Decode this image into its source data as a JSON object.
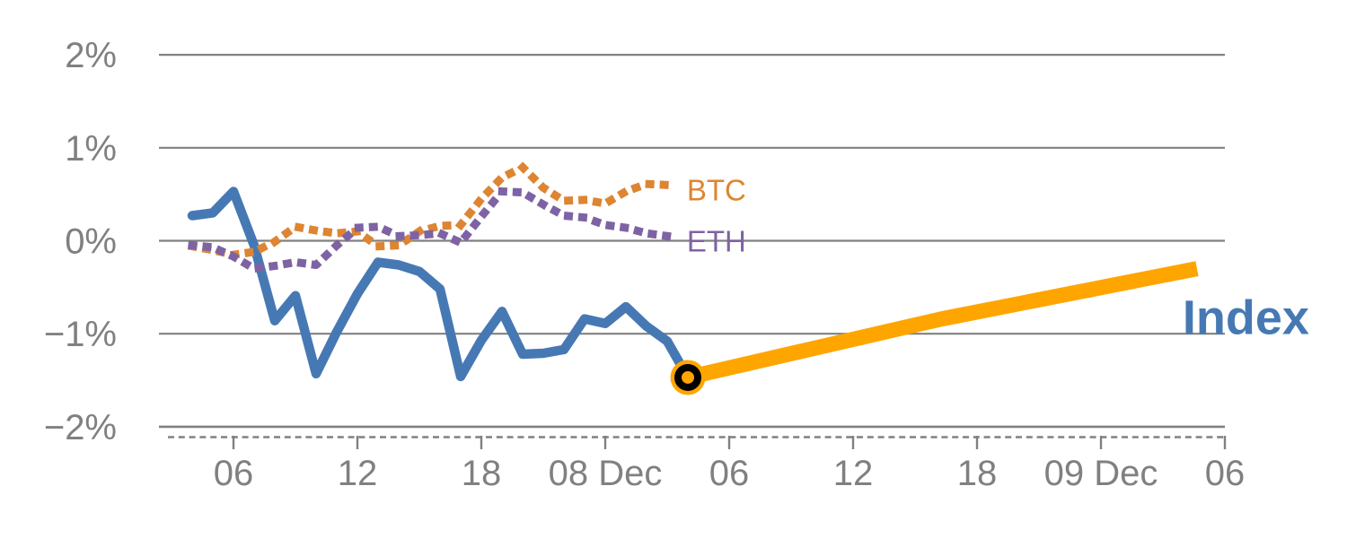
{
  "chart_data": {
    "type": "line",
    "title": "",
    "xlabel": "",
    "ylabel": "",
    "grid": true,
    "legend_position": "end-of-line-labels",
    "x_axis": {
      "unit": "hours (hourly returns, Dec 7 - Dec 10)",
      "range_hours": [
        2.4,
        54.1
      ],
      "ticks": [
        {
          "h": 6,
          "label": "06"
        },
        {
          "h": 12,
          "label": "12"
        },
        {
          "h": 18,
          "label": "18"
        },
        {
          "h": 24,
          "label": "08 Dec"
        },
        {
          "h": 30,
          "label": "06"
        },
        {
          "h": 36,
          "label": "12"
        },
        {
          "h": 42,
          "label": "18"
        },
        {
          "h": 48,
          "label": "09 Dec"
        },
        {
          "h": 54,
          "label": "06"
        }
      ]
    },
    "y_axis": {
      "unit": "percent return",
      "range": [
        -2.4,
        2.0
      ],
      "ticks": [
        {
          "v": 2,
          "label": "2%"
        },
        {
          "v": 1,
          "label": "1%"
        },
        {
          "v": 0,
          "label": "0%"
        },
        {
          "v": -1,
          "label": "−1%"
        },
        {
          "v": -2,
          "label": "−2%"
        }
      ]
    },
    "colors": {
      "grid": "#808080",
      "axis_text": "#808080",
      "btc": "#DD8532",
      "eth": "#7E63A4",
      "index": "#4679B4",
      "forecast": "#FFA500",
      "marker_ring": "#000000"
    },
    "series": [
      {
        "name": "BTC",
        "color": "#DD8532",
        "style": "dotted",
        "x": [
          4,
          5,
          6,
          7,
          8,
          9,
          10,
          11,
          12,
          13,
          14,
          15,
          16,
          17,
          18,
          19,
          20,
          21,
          22,
          23,
          24,
          25,
          26,
          27
        ],
        "values": [
          -0.06,
          -0.1,
          -0.15,
          -0.12,
          -0.01,
          0.15,
          0.11,
          0.08,
          0.1,
          -0.06,
          -0.05,
          0.1,
          0.16,
          0.17,
          0.45,
          0.68,
          0.79,
          0.57,
          0.43,
          0.44,
          0.4,
          0.53,
          0.61,
          0.6
        ]
      },
      {
        "name": "ETH",
        "color": "#7E63A4",
        "style": "dotted",
        "x": [
          4,
          5,
          6,
          7,
          8,
          9,
          10,
          11,
          12,
          13,
          14,
          15,
          16,
          17,
          18,
          19,
          20,
          21,
          22,
          23,
          24,
          25,
          26,
          27
        ],
        "values": [
          -0.05,
          -0.07,
          -0.17,
          -0.3,
          -0.27,
          -0.23,
          -0.26,
          -0.05,
          0.14,
          0.15,
          0.05,
          0.06,
          0.08,
          -0.02,
          0.26,
          0.53,
          0.52,
          0.39,
          0.27,
          0.25,
          0.17,
          0.14,
          0.08,
          0.05
        ]
      },
      {
        "name": "Index",
        "color": "#4679B4",
        "style": "solid",
        "x": [
          4,
          5,
          6,
          7,
          8,
          9,
          10,
          11,
          12,
          13,
          14,
          15,
          16,
          17,
          18,
          19,
          20,
          21,
          22,
          23,
          24,
          25,
          26,
          27,
          28
        ],
        "values": [
          0.27,
          0.3,
          0.53,
          -0.05,
          -0.86,
          -0.59,
          -1.43,
          -0.98,
          -0.57,
          -0.23,
          -0.26,
          -0.33,
          -0.52,
          -1.46,
          -1.07,
          -0.76,
          -1.22,
          -1.21,
          -1.17,
          -0.84,
          -0.89,
          -0.71,
          -0.92,
          -1.08,
          -1.47
        ]
      },
      {
        "name": "Index projection",
        "color": "#FFA500",
        "style": "thick",
        "x": [
          28,
          40.3,
          52.65
        ],
        "values": [
          -1.47,
          -0.84,
          -0.3
        ]
      }
    ],
    "marker": {
      "name": "last-actual-point",
      "h": 28,
      "value": -1.47,
      "fill": "#FFA500",
      "ring": "#000000"
    },
    "series_labels": [
      {
        "text": "BTC",
        "h": 27.95,
        "value": 0.55,
        "color": "#DD8532",
        "bold": false
      },
      {
        "text": "ETH",
        "h": 27.95,
        "value": 0.0,
        "color": "#7E63A4",
        "bold": false
      },
      {
        "text": "Index",
        "h": 51.95,
        "value": -0.82,
        "color": "#4679B4",
        "bold": true
      }
    ]
  }
}
